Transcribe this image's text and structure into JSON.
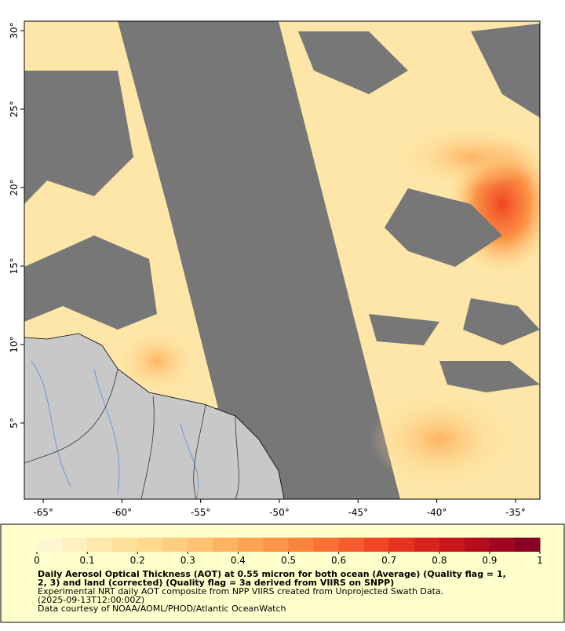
{
  "chart_data": {
    "type": "map",
    "xlim": [
      -66.2,
      -33.45
    ],
    "ylim": [
      0.15,
      30.6
    ],
    "xticks": [
      {
        "value": -65,
        "label": "-65°"
      },
      {
        "value": -60,
        "label": "-60°"
      },
      {
        "value": -55,
        "label": "-55°"
      },
      {
        "value": -50,
        "label": "-50°"
      },
      {
        "value": -45,
        "label": "-45°"
      },
      {
        "value": -40,
        "label": "-40°"
      },
      {
        "value": -35,
        "label": "-35°"
      }
    ],
    "yticks": [
      {
        "value": 5,
        "label": "5°"
      },
      {
        "value": 10,
        "label": "10°"
      },
      {
        "value": 15,
        "label": "15°"
      },
      {
        "value": 20,
        "label": "20°"
      },
      {
        "value": 25,
        "label": "25°"
      },
      {
        "value": 30,
        "label": "30°"
      }
    ],
    "colorbar": {
      "lim": [
        0,
        1
      ],
      "ticks": [
        0,
        0.1,
        0.2,
        0.3,
        0.4,
        0.5,
        0.6,
        0.7,
        0.8,
        0.9,
        1
      ],
      "colors": [
        "#fff7d4",
        "#fff0c0",
        "#ffe8ac",
        "#fee09b",
        "#fed98e",
        "#fece80",
        "#fec272",
        "#fdb462",
        "#fda452",
        "#fc9446",
        "#fc833c",
        "#fb7134",
        "#f65c2c",
        "#f04624",
        "#e7321f",
        "#da231c",
        "#c9161b",
        "#b50c1e",
        "#9f0621",
        "#870224"
      ]
    },
    "caption": [
      "Daily Aerosol Optical Thickness (AOT) at 0.55 micron for both ocean (Average) (Quality flag = 1,",
      "2, 3) and land (corrected) (Quality flag = 3a derived from VIIRS on SNPP)",
      "Experimental NRT daily AOT composite from NPP VIIRS created from Unprojected Swath Data.",
      "(2025-09-13T12:00:00Z)",
      "Data courtesy of NOAA/AOML/PHOD/Atlantic OceanWatch"
    ]
  }
}
